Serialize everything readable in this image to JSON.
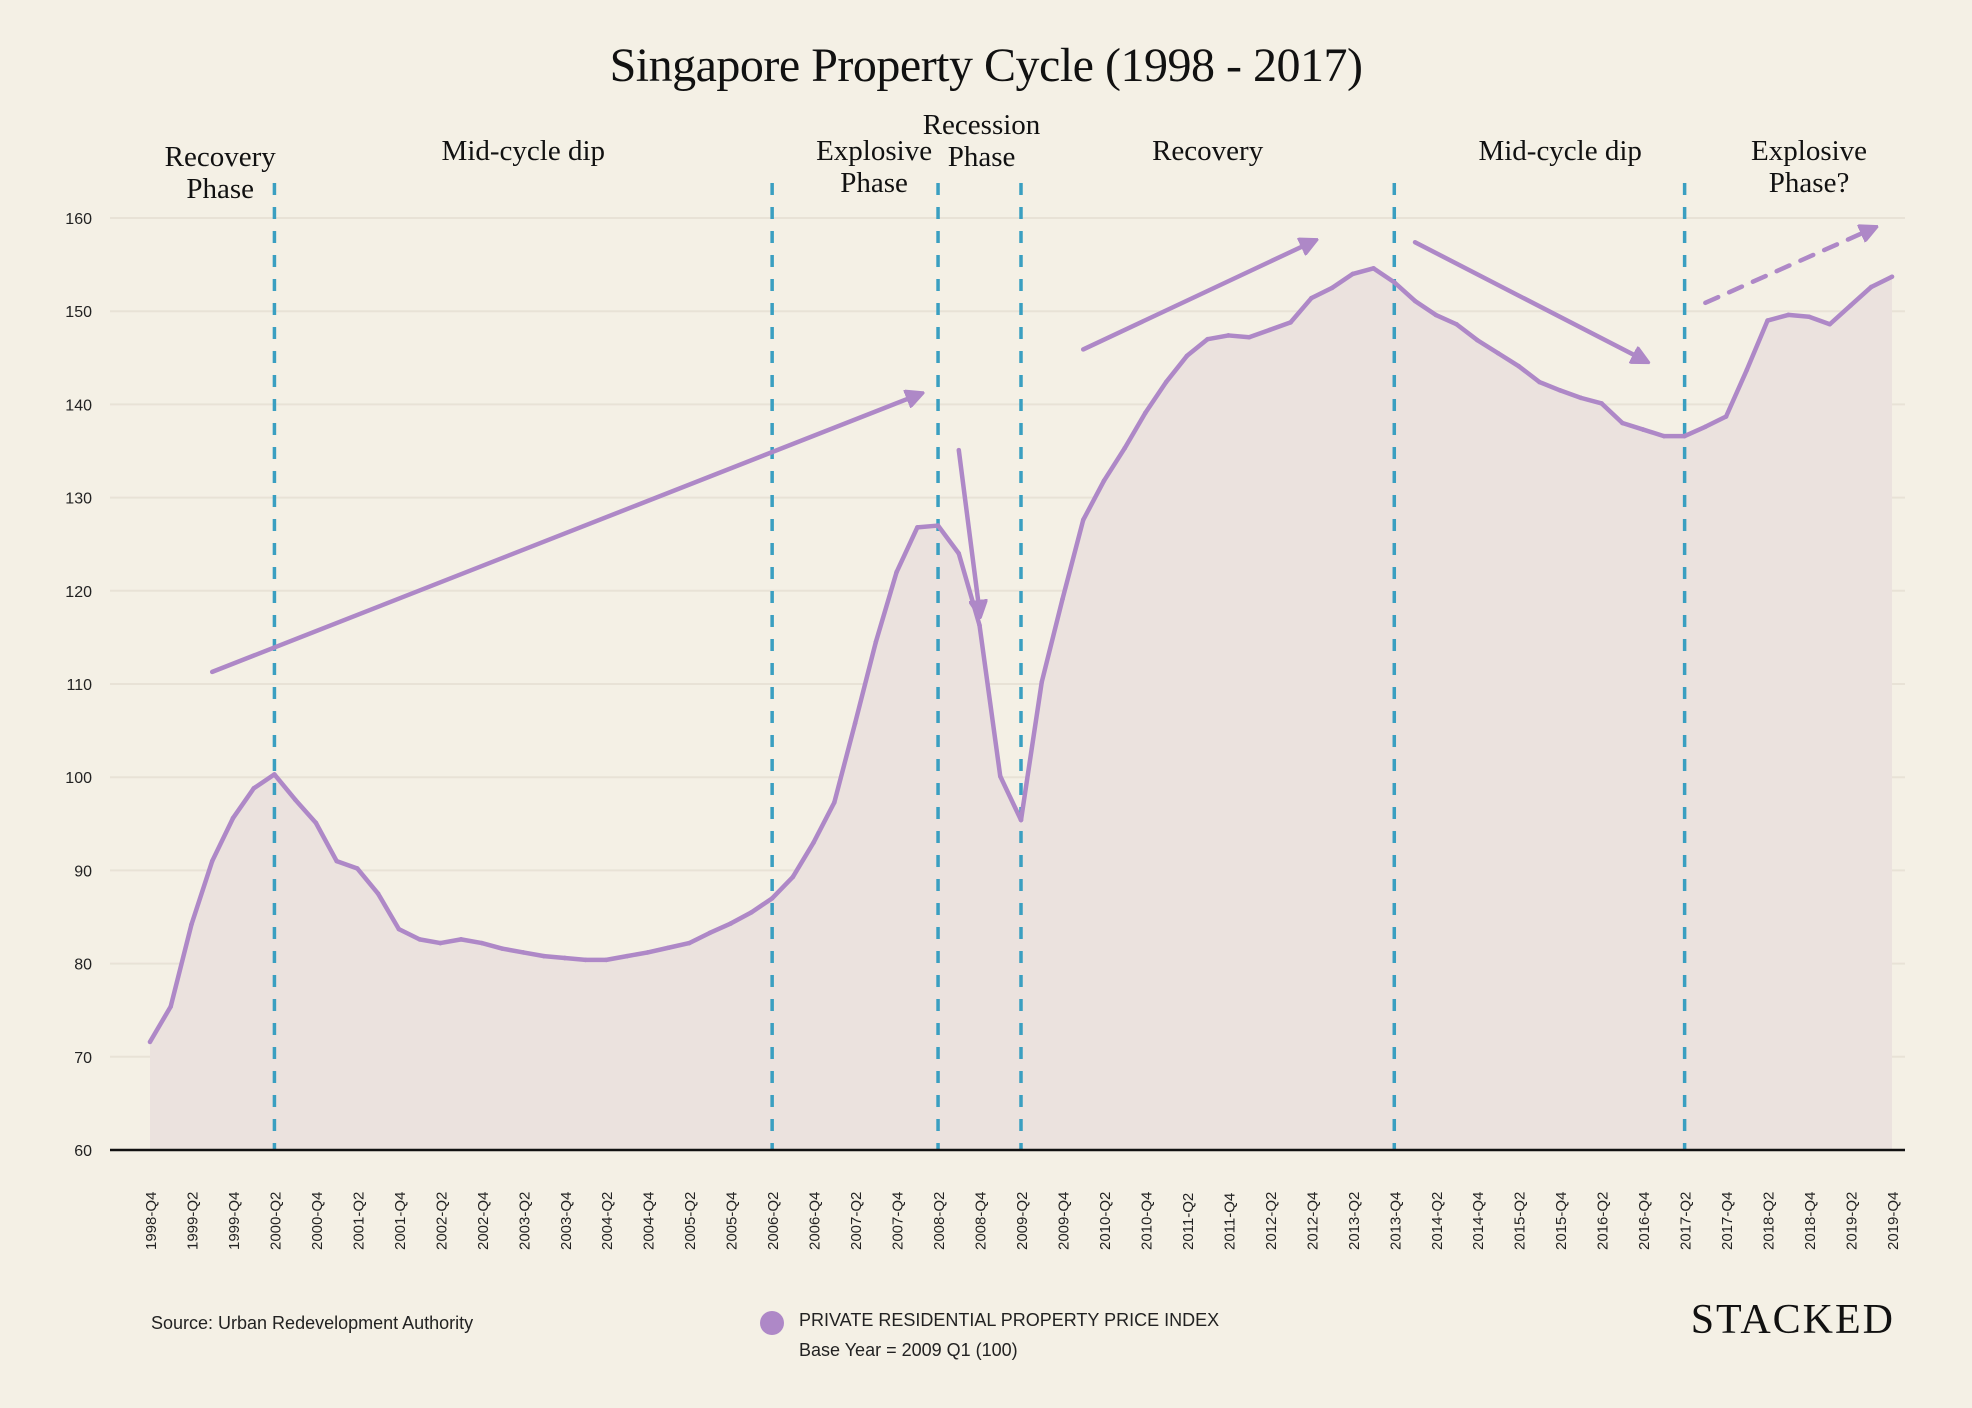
{
  "chart_data": {
    "type": "area",
    "title": "Singapore Property Cycle (1998 - 2017)",
    "xlabel": "",
    "ylabel": "",
    "ylim": [
      60,
      160
    ],
    "yticks": [
      60,
      70,
      80,
      90,
      100,
      110,
      120,
      130,
      140,
      150,
      160
    ],
    "grid": true,
    "x": [
      "1998-Q4",
      "1999-Q1",
      "1999-Q2",
      "1999-Q3",
      "1999-Q4",
      "2000-Q1",
      "2000-Q2",
      "2000-Q3",
      "2000-Q4",
      "2001-Q1",
      "2001-Q2",
      "2001-Q3",
      "2001-Q4",
      "2002-Q1",
      "2002-Q2",
      "2002-Q3",
      "2002-Q4",
      "2003-Q1",
      "2003-Q2",
      "2003-Q3",
      "2003-Q4",
      "2004-Q1",
      "2004-Q2",
      "2004-Q3",
      "2004-Q4",
      "2005-Q1",
      "2005-Q2",
      "2005-Q3",
      "2005-Q4",
      "2006-Q1",
      "2006-Q2",
      "2006-Q3",
      "2006-Q4",
      "2007-Q1",
      "2007-Q2",
      "2007-Q3",
      "2007-Q4",
      "2008-Q1",
      "2008-Q2",
      "2008-Q3",
      "2008-Q4",
      "2009-Q1",
      "2009-Q2",
      "2009-Q3",
      "2009-Q4",
      "2010-Q1",
      "2010-Q2",
      "2010-Q3",
      "2010-Q4",
      "2011-Q1",
      "2011-Q2",
      "2011-Q3",
      "2011-Q4",
      "2012-Q1",
      "2012-Q2",
      "2012-Q3",
      "2012-Q4",
      "2013-Q1",
      "2013-Q2",
      "2013-Q3",
      "2013-Q4",
      "2014-Q1",
      "2014-Q2",
      "2014-Q3",
      "2014-Q4",
      "2015-Q1",
      "2015-Q2",
      "2015-Q3",
      "2015-Q4",
      "2016-Q1",
      "2016-Q2",
      "2016-Q3",
      "2016-Q4",
      "2017-Q1",
      "2017-Q2",
      "2017-Q3",
      "2017-Q4",
      "2018-Q1",
      "2018-Q2",
      "2018-Q3",
      "2018-Q4",
      "2019-Q1",
      "2019-Q2",
      "2019-Q3",
      "2019-Q4"
    ],
    "xtick_labels": [
      "1998-Q4",
      "1999-Q2",
      "1999-Q4",
      "2000-Q2",
      "2000-Q4",
      "2001-Q2",
      "2001-Q4",
      "2002-Q2",
      "2002-Q4",
      "2003-Q2",
      "2003-Q4",
      "2004-Q2",
      "2004-Q4",
      "2005-Q2",
      "2005-Q4",
      "2006-Q2",
      "2006-Q4",
      "2007-Q2",
      "2007-Q4",
      "2008-Q2",
      "2008-Q4",
      "2009-Q2",
      "2009-Q4",
      "2010-Q2",
      "2010-Q4",
      "2011-Q2",
      "2011-Q4",
      "2012-Q2",
      "2012-Q4",
      "2013-Q2",
      "2013-Q4",
      "2014-Q2",
      "2014-Q4",
      "2015-Q2",
      "2015-Q4",
      "2016-Q2",
      "2016-Q4",
      "2017-Q2",
      "2017-Q4",
      "2018-Q2",
      "2018-Q4",
      "2019-Q2",
      "2019-Q4"
    ],
    "series": [
      {
        "name": "PRIVATE RESIDENTIAL PROPERTY PRICE INDEX",
        "color": "#ae88c7",
        "values": [
          71.6,
          75.4,
          84.2,
          91.0,
          95.6,
          98.8,
          100.3,
          97.6,
          95.1,
          91.0,
          90.2,
          87.5,
          83.7,
          82.6,
          82.2,
          82.6,
          82.2,
          81.6,
          81.2,
          80.8,
          80.6,
          80.4,
          80.4,
          80.8,
          81.2,
          81.7,
          82.2,
          83.3,
          84.3,
          85.5,
          87.0,
          89.3,
          93.0,
          97.3,
          105.8,
          114.5,
          122.0,
          126.8,
          127.0,
          124.0,
          116.3,
          100.1,
          95.4,
          110.2,
          119.1,
          127.6,
          131.8,
          135.3,
          139.1,
          142.4,
          145.2,
          147.0,
          147.4,
          147.2,
          148.0,
          148.8,
          151.4,
          152.5,
          154.0,
          154.6,
          153.1,
          151.1,
          149.6,
          148.6,
          146.9,
          145.5,
          144.1,
          142.4,
          141.5,
          140.7,
          140.1,
          138.0,
          137.3,
          136.6,
          136.6,
          137.6,
          138.7,
          143.7,
          149.0,
          149.6,
          149.4,
          148.6,
          150.6,
          152.6,
          153.7
        ]
      }
    ],
    "phase_boundaries": [
      "2000-Q2",
      "2006-Q2",
      "2008-Q2",
      "2009-Q2",
      "2013-Q4",
      "2017-Q2"
    ],
    "phase_color": "#3a9fc1",
    "phases": [
      {
        "label_lines": [
          "Recovery",
          "Phase"
        ],
        "center": "1999-Q3"
      },
      {
        "label_lines": [
          "Mid-cycle dip"
        ],
        "center": "2003-Q2"
      },
      {
        "label_lines": [
          "Explosive",
          "Phase"
        ],
        "center": "2007-Q2"
      },
      {
        "label_lines": [
          "Recession",
          "Phase"
        ],
        "center": "2008-Q4"
      },
      {
        "label_lines": [
          "Recovery"
        ],
        "center": "2011-Q3"
      },
      {
        "label_lines": [
          "Mid-cycle dip"
        ],
        "center": "2015-Q4"
      },
      {
        "label_lines": [
          "Explosive",
          "Phase?"
        ],
        "center": "2018-Q4"
      }
    ],
    "trend_arrows": [
      {
        "from": [
          "1999-Q3",
          111.3
        ],
        "to": [
          "2008-Q1",
          141.0
        ],
        "style": "solid"
      },
      {
        "from": [
          "2008-Q3",
          135.1
        ],
        "to": [
          "2008-Q4",
          117.8
        ],
        "style": "solid"
      },
      {
        "from": [
          "2010-Q1",
          145.9
        ],
        "to": [
          "2012-Q4",
          157.4
        ],
        "style": "solid"
      },
      {
        "from": [
          "2014-Q1",
          157.4
        ],
        "to": [
          "2016-Q4",
          144.8
        ],
        "style": "solid"
      },
      {
        "from": [
          "2017-Q3",
          150.9
        ],
        "to": [
          "2019-Q3",
          158.8
        ],
        "style": "dashed"
      }
    ],
    "legend_position": "bottom-center",
    "annotations": [
      "Base Year = 2009 Q1 (100)"
    ]
  },
  "footer": {
    "source": "Source: Urban Redevelopment Authority",
    "legend_label": "PRIVATE RESIDENTIAL PROPERTY PRICE INDEX",
    "legend_sub": "Base Year = 2009 Q1 (100)",
    "brand": "STACKED"
  }
}
